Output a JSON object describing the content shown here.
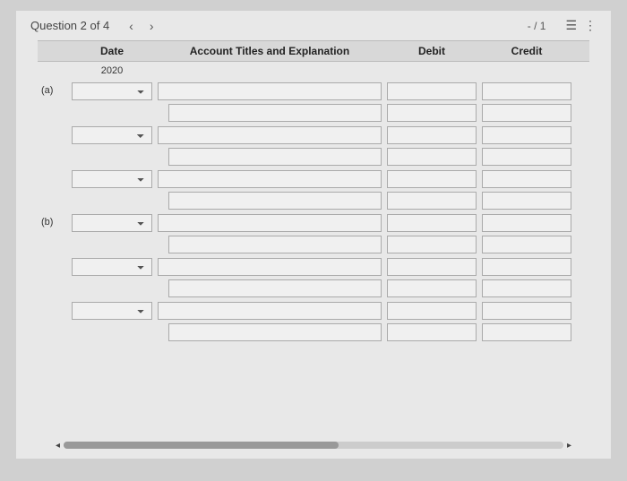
{
  "topbar": {
    "title": "Question 2 of 4",
    "prev": "‹",
    "next": "›",
    "score": "- / 1",
    "list_icon": "☰",
    "more_icon": "⋮"
  },
  "headers": {
    "blank": "",
    "date": "Date",
    "account": "Account Titles and Explanation",
    "debit": "Debit",
    "credit": "Credit"
  },
  "year": "2020",
  "rows": [
    {
      "label": "(a)",
      "date_select": true
    },
    {
      "label": "",
      "date_select": false,
      "indent": true
    },
    {
      "label": "",
      "date_select": true
    },
    {
      "label": "",
      "date_select": false,
      "indent": true
    },
    {
      "label": "",
      "date_select": true
    },
    {
      "label": "",
      "date_select": false,
      "indent": true
    },
    {
      "label": "(b)",
      "date_select": true
    },
    {
      "label": "",
      "date_select": false,
      "indent": true
    },
    {
      "label": "",
      "date_select": true
    },
    {
      "label": "",
      "date_select": false,
      "indent": true
    },
    {
      "label": "",
      "date_select": true
    },
    {
      "label": "",
      "date_select": false,
      "indent": true
    }
  ]
}
